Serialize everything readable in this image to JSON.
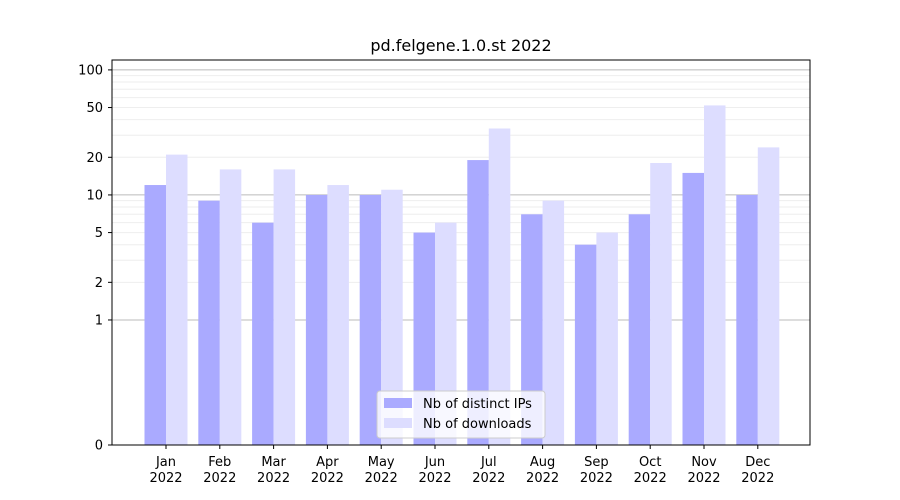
{
  "chart_data": {
    "type": "bar",
    "title": "pd.felgene.1.0.st 2022",
    "xlabel": "",
    "ylabel": "",
    "categories": [
      [
        "Jan",
        "2022"
      ],
      [
        "Feb",
        "2022"
      ],
      [
        "Mar",
        "2022"
      ],
      [
        "Apr",
        "2022"
      ],
      [
        "May",
        "2022"
      ],
      [
        "Jun",
        "2022"
      ],
      [
        "Jul",
        "2022"
      ],
      [
        "Aug",
        "2022"
      ],
      [
        "Sep",
        "2022"
      ],
      [
        "Oct",
        "2022"
      ],
      [
        "Nov",
        "2022"
      ],
      [
        "Dec",
        "2022"
      ]
    ],
    "series": [
      {
        "name": "Nb of distinct IPs",
        "color": "#aaaaff",
        "values": [
          12,
          9,
          6,
          10,
          10,
          5,
          19,
          7,
          4,
          7,
          15,
          10
        ]
      },
      {
        "name": "Nb of downloads",
        "color": "#ddddff",
        "values": [
          21,
          16,
          16,
          12,
          11,
          6,
          34,
          9,
          5,
          18,
          52,
          24
        ]
      }
    ],
    "yscale": "symlog",
    "yticks": [
      0,
      1,
      2,
      5,
      10,
      20,
      50,
      100
    ],
    "ylim": [
      0,
      120
    ],
    "grid": true,
    "legend_position": "lower center"
  }
}
